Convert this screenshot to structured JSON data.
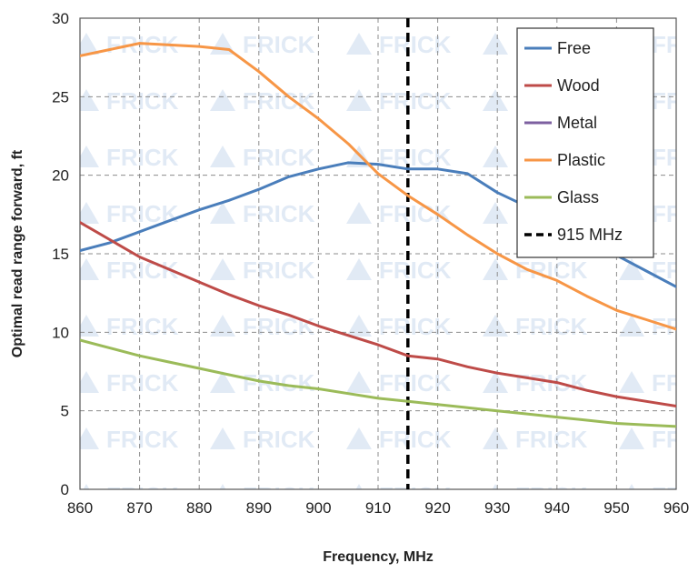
{
  "chart_data": {
    "type": "line",
    "xlabel": "Frequency, MHz",
    "ylabel": "Optimal read range forward, ft",
    "xlim": [
      860,
      960
    ],
    "ylim": [
      0,
      30
    ],
    "xticks": [
      860,
      870,
      880,
      890,
      900,
      910,
      920,
      930,
      940,
      950,
      960
    ],
    "yticks": [
      0,
      5,
      10,
      15,
      20,
      25,
      30
    ],
    "grid": true,
    "legend_position": "top-right",
    "watermark": "FRICK",
    "series": [
      {
        "name": "Free",
        "color": "#4a7ebb",
        "points": [
          [
            860,
            15.2
          ],
          [
            865,
            15.7
          ],
          [
            870,
            16.4
          ],
          [
            875,
            17.1
          ],
          [
            880,
            17.8
          ],
          [
            885,
            18.4
          ],
          [
            890,
            19.1
          ],
          [
            895,
            19.9
          ],
          [
            900,
            20.4
          ],
          [
            905,
            20.8
          ],
          [
            910,
            20.7
          ],
          [
            915,
            20.4
          ],
          [
            920,
            20.4
          ],
          [
            925,
            20.1
          ],
          [
            930,
            18.9
          ],
          [
            935,
            18.0
          ],
          [
            940,
            17.0
          ],
          [
            945,
            16.0
          ],
          [
            950,
            14.9
          ],
          [
            955,
            13.9
          ],
          [
            960,
            12.9
          ]
        ]
      },
      {
        "name": "Wood",
        "color": "#be4b48",
        "points": [
          [
            860,
            17.0
          ],
          [
            865,
            15.9
          ],
          [
            870,
            14.8
          ],
          [
            875,
            14.0
          ],
          [
            880,
            13.2
          ],
          [
            885,
            12.4
          ],
          [
            890,
            11.7
          ],
          [
            895,
            11.1
          ],
          [
            900,
            10.4
          ],
          [
            905,
            9.8
          ],
          [
            910,
            9.2
          ],
          [
            915,
            8.5
          ],
          [
            920,
            8.3
          ],
          [
            925,
            7.8
          ],
          [
            930,
            7.4
          ],
          [
            935,
            7.1
          ],
          [
            940,
            6.8
          ],
          [
            945,
            6.3
          ],
          [
            950,
            5.9
          ],
          [
            955,
            5.6
          ],
          [
            960,
            5.3
          ]
        ]
      },
      {
        "name": "Metal",
        "color": "#7d60a0",
        "points": []
      },
      {
        "name": "Plastic",
        "color": "#f79646",
        "points": [
          [
            860,
            27.6
          ],
          [
            865,
            28.0
          ],
          [
            870,
            28.4
          ],
          [
            875,
            28.3
          ],
          [
            880,
            28.2
          ],
          [
            885,
            28.0
          ],
          [
            890,
            26.6
          ],
          [
            895,
            25.0
          ],
          [
            900,
            23.6
          ],
          [
            905,
            22.0
          ],
          [
            910,
            20.1
          ],
          [
            915,
            18.7
          ],
          [
            920,
            17.5
          ],
          [
            925,
            16.2
          ],
          [
            930,
            15.0
          ],
          [
            935,
            14.0
          ],
          [
            940,
            13.3
          ],
          [
            945,
            12.3
          ],
          [
            950,
            11.4
          ],
          [
            955,
            10.8
          ],
          [
            960,
            10.2
          ]
        ]
      },
      {
        "name": "Glass",
        "color": "#9bbb59",
        "points": [
          [
            860,
            9.5
          ],
          [
            865,
            9.0
          ],
          [
            870,
            8.5
          ],
          [
            875,
            8.1
          ],
          [
            880,
            7.7
          ],
          [
            885,
            7.3
          ],
          [
            890,
            6.9
          ],
          [
            895,
            6.6
          ],
          [
            900,
            6.4
          ],
          [
            905,
            6.1
          ],
          [
            910,
            5.8
          ],
          [
            915,
            5.6
          ],
          [
            920,
            5.4
          ],
          [
            925,
            5.2
          ],
          [
            930,
            5.0
          ],
          [
            935,
            4.8
          ],
          [
            940,
            4.6
          ],
          [
            945,
            4.4
          ],
          [
            950,
            4.2
          ],
          [
            955,
            4.1
          ],
          [
            960,
            4.0
          ]
        ]
      }
    ],
    "reference_line": {
      "name": "915 MHz",
      "x": 915,
      "color": "#000000",
      "style": "dashed"
    }
  }
}
